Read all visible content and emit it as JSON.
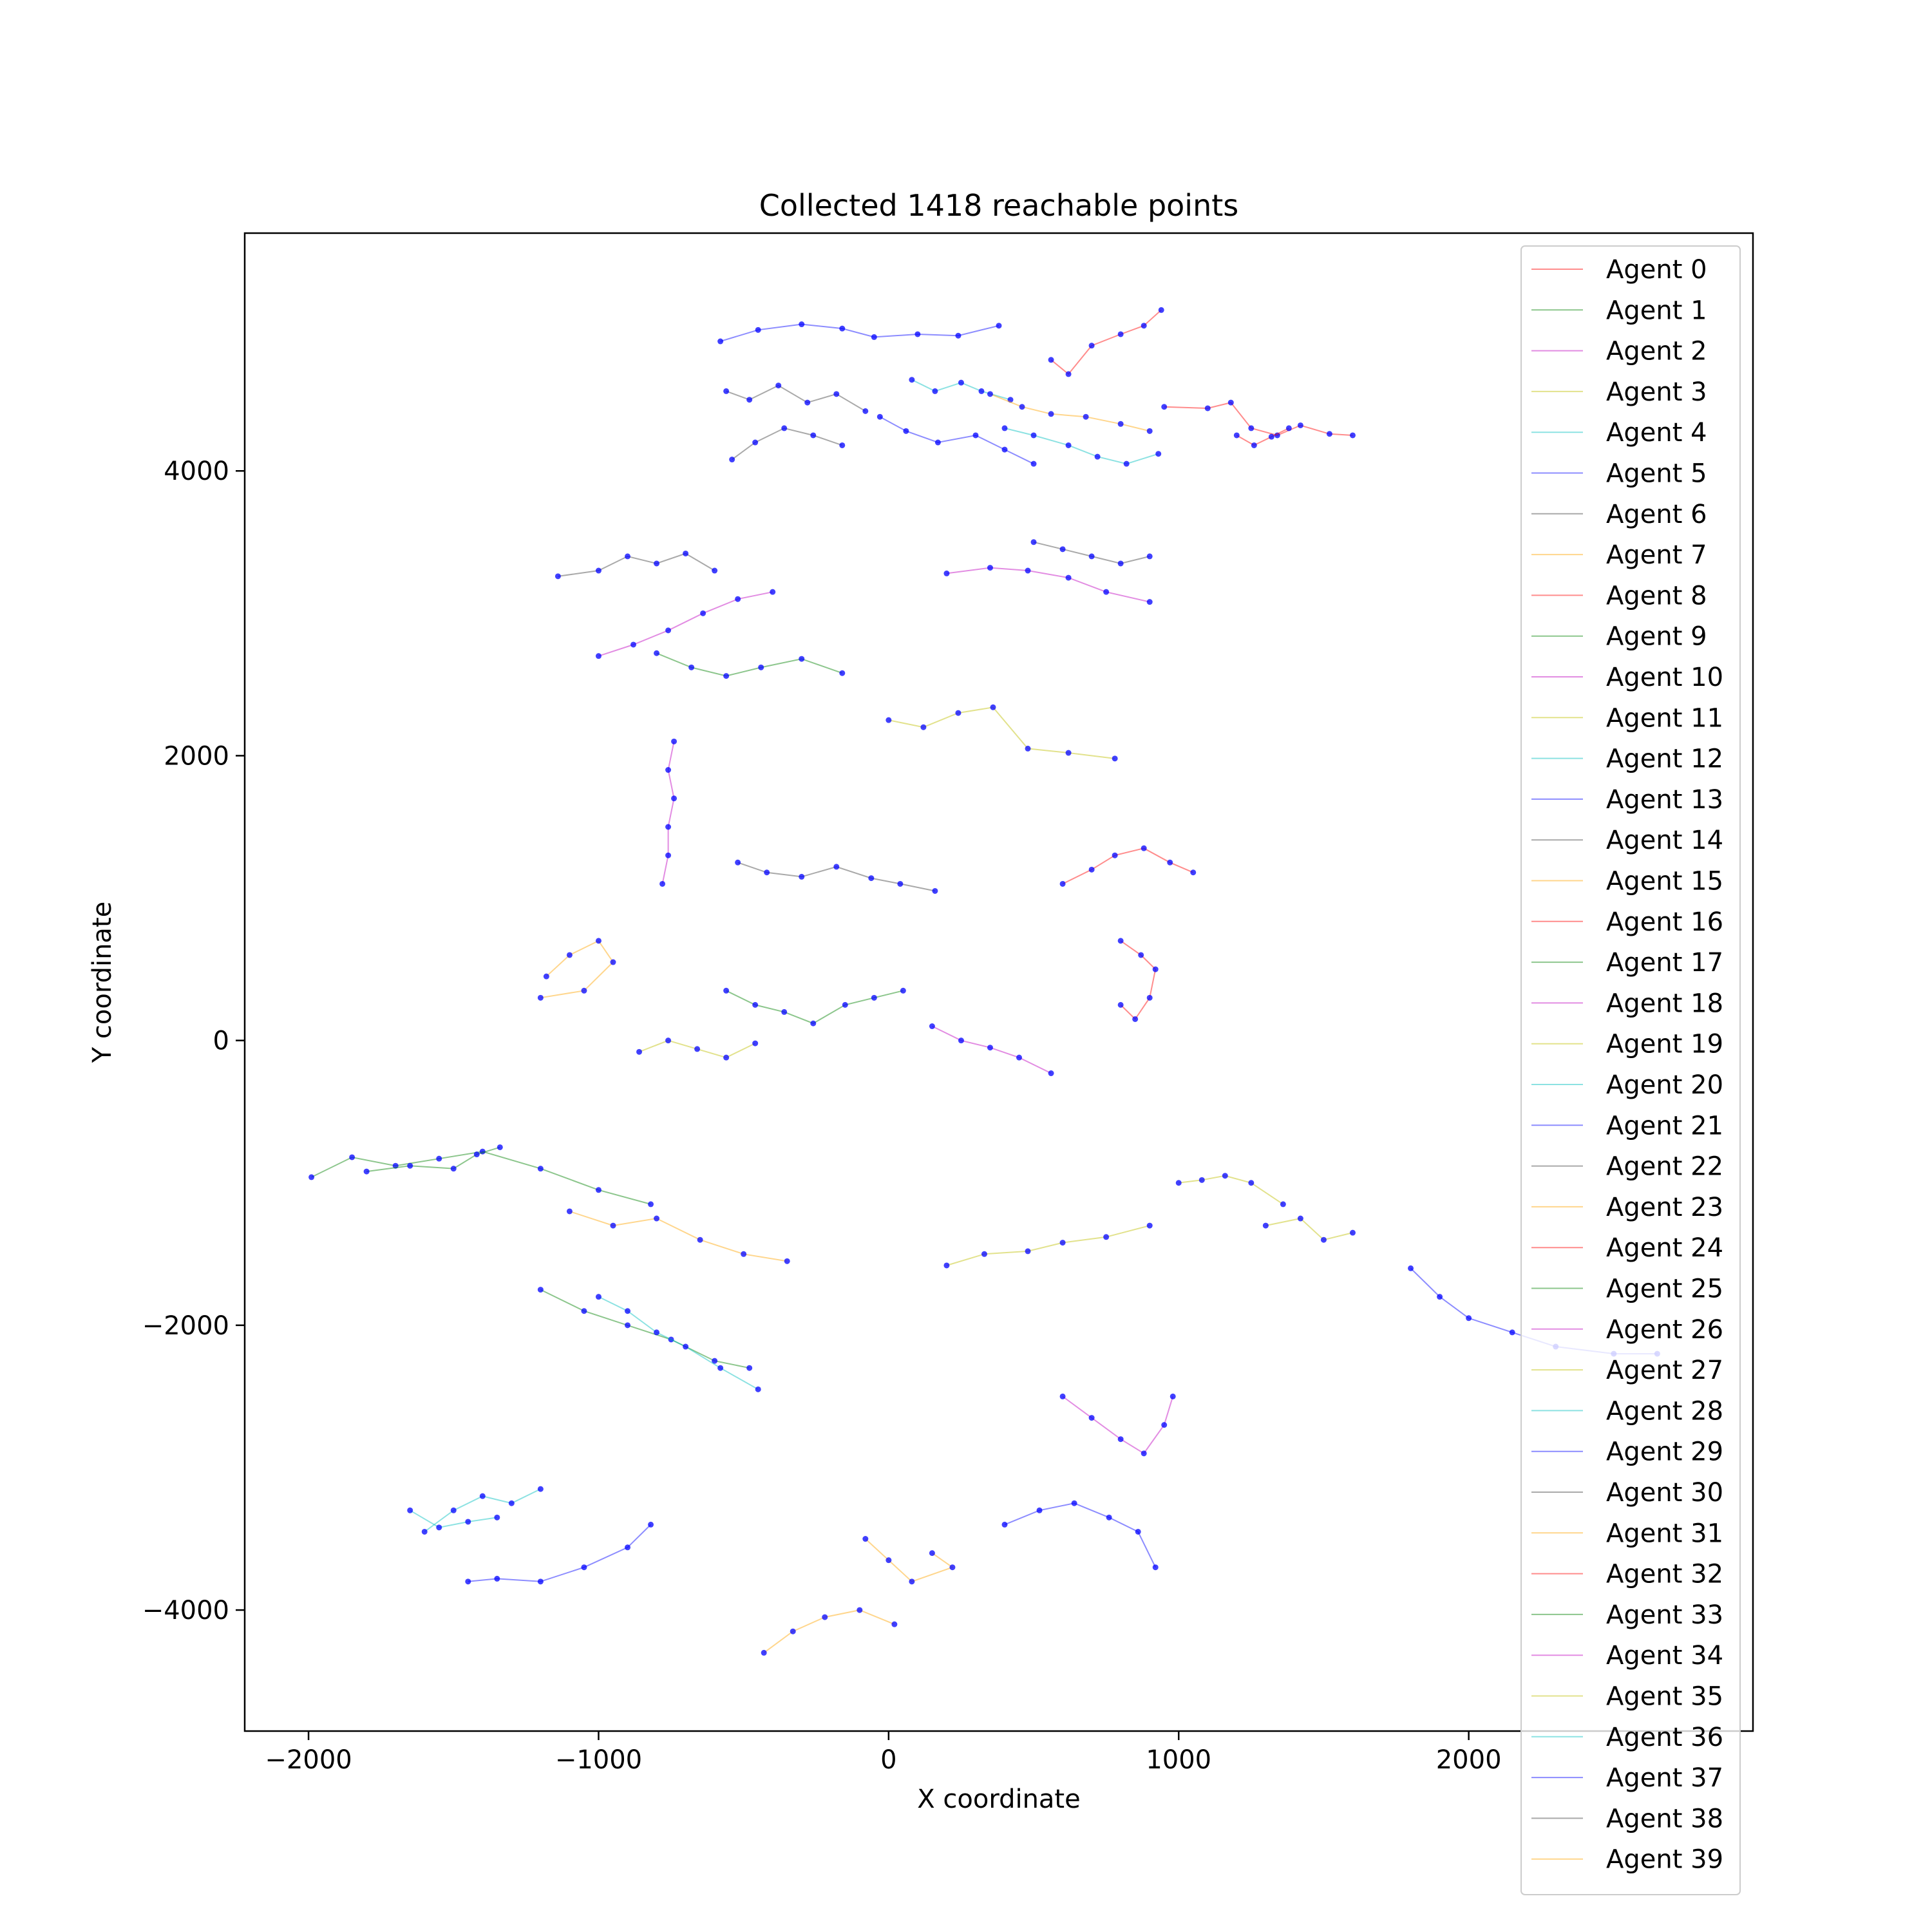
{
  "chart_data": {
    "type": "line",
    "title": "Collected 1418 reachable points",
    "xlabel": "X coordinate",
    "ylabel": "Y coordinate",
    "xlim": [
      -2220,
      2980
    ],
    "ylim": [
      -4850,
      5670
    ],
    "xticks": [
      -2000,
      -1000,
      0,
      1000,
      2000
    ],
    "xtick_labels": [
      "−2000",
      "−1000",
      "0",
      "1000",
      "2000"
    ],
    "yticks": [
      -4000,
      -2000,
      0,
      2000,
      4000
    ],
    "ytick_labels": [
      "−4000",
      "−2000",
      "0",
      "2000",
      "4000"
    ],
    "grid": false,
    "legend_position": "right",
    "point_color": "#0000ff",
    "series": [
      {
        "name": "Agent 0",
        "color": "#ff0000",
        "points": [
          [
            950,
            4450
          ],
          [
            1100,
            4440
          ],
          [
            1180,
            4480
          ],
          [
            1250,
            4300
          ],
          [
            1340,
            4250
          ],
          [
            1420,
            4320
          ],
          [
            1520,
            4260
          ],
          [
            1600,
            4250
          ]
        ]
      },
      {
        "name": "Agent 1",
        "color": "#008000",
        "points": [
          [
            -1990,
            -960
          ],
          [
            -1850,
            -820
          ],
          [
            -1700,
            -880
          ],
          [
            -1550,
            -830
          ],
          [
            -1400,
            -780
          ],
          [
            -1200,
            -900
          ],
          [
            -1000,
            -1050
          ],
          [
            -820,
            -1150
          ]
        ]
      },
      {
        "name": "Agent 2",
        "color": "#bf00bf",
        "points": [
          [
            200,
            3280
          ],
          [
            350,
            3320
          ],
          [
            480,
            3300
          ],
          [
            620,
            3250
          ],
          [
            750,
            3150
          ],
          [
            900,
            3080
          ]
        ]
      },
      {
        "name": "Agent 3",
        "color": "#bfbf00",
        "points": [
          [
            200,
            -1580
          ],
          [
            330,
            -1500
          ],
          [
            480,
            -1480
          ],
          [
            600,
            -1420
          ],
          [
            750,
            -1380
          ],
          [
            900,
            -1300
          ]
        ]
      },
      {
        "name": "Agent 4",
        "color": "#00bfbf",
        "points": [
          [
            80,
            4640
          ],
          [
            160,
            4560
          ],
          [
            250,
            4620
          ],
          [
            320,
            4560
          ],
          [
            420,
            4500
          ]
        ]
      },
      {
        "name": "Agent 5",
        "color": "#0000ff",
        "points": [
          [
            -580,
            4910
          ],
          [
            -450,
            4990
          ],
          [
            -300,
            5030
          ],
          [
            -160,
            5000
          ],
          [
            -50,
            4940
          ],
          [
            100,
            4960
          ],
          [
            240,
            4950
          ],
          [
            380,
            5020
          ]
        ]
      },
      {
        "name": "Agent 6",
        "color": "#404040",
        "points": [
          [
            -560,
            4560
          ],
          [
            -480,
            4500
          ],
          [
            -380,
            4600
          ],
          [
            -280,
            4480
          ],
          [
            -180,
            4540
          ],
          [
            -80,
            4420
          ]
        ]
      },
      {
        "name": "Agent 7",
        "color": "#ffa500",
        "points": [
          [
            350,
            4540
          ],
          [
            460,
            4450
          ],
          [
            560,
            4400
          ],
          [
            680,
            4380
          ],
          [
            800,
            4330
          ],
          [
            900,
            4280
          ]
        ]
      },
      {
        "name": "Agent 8",
        "color": "#ff0000",
        "points": [
          [
            560,
            4780
          ],
          [
            620,
            4680
          ],
          [
            700,
            4880
          ],
          [
            800,
            4960
          ],
          [
            880,
            5020
          ],
          [
            940,
            5130
          ]
        ]
      },
      {
        "name": "Agent 9",
        "color": "#008000",
        "points": [
          [
            -800,
            2720
          ],
          [
            -680,
            2620
          ],
          [
            -560,
            2560
          ],
          [
            -440,
            2620
          ],
          [
            -300,
            2680
          ],
          [
            -160,
            2580
          ]
        ]
      },
      {
        "name": "Agent 10",
        "color": "#bf00bf",
        "points": [
          [
            -1000,
            2700
          ],
          [
            -880,
            2780
          ],
          [
            -760,
            2880
          ],
          [
            -640,
            3000
          ],
          [
            -520,
            3100
          ],
          [
            -400,
            3150
          ]
        ]
      },
      {
        "name": "Agent 11",
        "color": "#bfbf00",
        "points": [
          [
            0,
            2250
          ],
          [
            120,
            2200
          ],
          [
            240,
            2300
          ],
          [
            360,
            2340
          ],
          [
            480,
            2050
          ],
          [
            620,
            2020
          ],
          [
            780,
            1980
          ]
        ]
      },
      {
        "name": "Agent 12",
        "color": "#00bfbf",
        "points": [
          [
            400,
            4300
          ],
          [
            500,
            4250
          ],
          [
            620,
            4180
          ],
          [
            720,
            4100
          ],
          [
            820,
            4050
          ],
          [
            930,
            4120
          ]
        ]
      },
      {
        "name": "Agent 13",
        "color": "#0000ff",
        "points": [
          [
            -30,
            4380
          ],
          [
            60,
            4280
          ],
          [
            170,
            4200
          ],
          [
            300,
            4250
          ],
          [
            400,
            4150
          ],
          [
            500,
            4050
          ]
        ]
      },
      {
        "name": "Agent 14",
        "color": "#404040",
        "points": [
          [
            -520,
            1250
          ],
          [
            -420,
            1180
          ],
          [
            -300,
            1150
          ],
          [
            -180,
            1220
          ],
          [
            -60,
            1140
          ],
          [
            40,
            1100
          ],
          [
            160,
            1050
          ]
        ]
      },
      {
        "name": "Agent 15",
        "color": "#ffa500",
        "points": [
          [
            -1180,
            450
          ],
          [
            -1100,
            600
          ],
          [
            -1000,
            700
          ],
          [
            -950,
            550
          ],
          [
            -1050,
            350
          ],
          [
            -1200,
            300
          ]
        ]
      },
      {
        "name": "Agent 16",
        "color": "#ff0000",
        "points": [
          [
            600,
            1100
          ],
          [
            700,
            1200
          ],
          [
            780,
            1300
          ],
          [
            880,
            1350
          ],
          [
            970,
            1250
          ],
          [
            1050,
            1180
          ]
        ]
      },
      {
        "name": "Agent 17",
        "color": "#008000",
        "points": [
          [
            -560,
            350
          ],
          [
            -460,
            250
          ],
          [
            -360,
            200
          ],
          [
            -260,
            120
          ],
          [
            -150,
            250
          ],
          [
            -50,
            300
          ],
          [
            50,
            350
          ]
        ]
      },
      {
        "name": "Agent 18",
        "color": "#bf00bf",
        "points": [
          [
            150,
            100
          ],
          [
            250,
            0
          ],
          [
            350,
            -50
          ],
          [
            450,
            -120
          ],
          [
            560,
            -230
          ]
        ]
      },
      {
        "name": "Agent 19",
        "color": "#bfbf00",
        "points": [
          [
            -860,
            -80
          ],
          [
            -760,
            0
          ],
          [
            -660,
            -60
          ],
          [
            -560,
            -120
          ],
          [
            -460,
            -20
          ]
        ]
      },
      {
        "name": "Agent 20",
        "color": "#00bfbf",
        "points": [
          [
            -1600,
            -3450
          ],
          [
            -1500,
            -3300
          ],
          [
            -1400,
            -3200
          ],
          [
            -1300,
            -3250
          ],
          [
            -1200,
            -3150
          ]
        ]
      },
      {
        "name": "Agent 21",
        "color": "#0000ff",
        "points": [
          [
            -1450,
            -3800
          ],
          [
            -1350,
            -3780
          ],
          [
            -1200,
            -3800
          ],
          [
            -1050,
            -3700
          ],
          [
            -900,
            -3560
          ],
          [
            -820,
            -3400
          ]
        ]
      },
      {
        "name": "Agent 22",
        "color": "#404040",
        "points": [
          [
            -1140,
            3260
          ],
          [
            -1000,
            3300
          ],
          [
            -900,
            3400
          ],
          [
            -800,
            3350
          ],
          [
            -700,
            3420
          ],
          [
            -600,
            3300
          ]
        ]
      },
      {
        "name": "Agent 23",
        "color": "#ffa500",
        "points": [
          [
            -1100,
            -1200
          ],
          [
            -950,
            -1300
          ],
          [
            -800,
            -1250
          ],
          [
            -650,
            -1400
          ],
          [
            -500,
            -1500
          ],
          [
            -350,
            -1550
          ]
        ]
      },
      {
        "name": "Agent 24",
        "color": "#ff0000",
        "points": [
          [
            800,
            700
          ],
          [
            870,
            600
          ],
          [
            920,
            500
          ],
          [
            900,
            300
          ],
          [
            850,
            150
          ],
          [
            800,
            250
          ]
        ]
      },
      {
        "name": "Agent 25",
        "color": "#008000",
        "points": [
          [
            -1200,
            -1750
          ],
          [
            -1050,
            -1900
          ],
          [
            -900,
            -2000
          ],
          [
            -750,
            -2100
          ],
          [
            -600,
            -2250
          ],
          [
            -480,
            -2300
          ]
        ]
      },
      {
        "name": "Agent 26",
        "color": "#bf00bf",
        "points": [
          [
            600,
            -2500
          ],
          [
            700,
            -2650
          ],
          [
            800,
            -2800
          ],
          [
            880,
            -2900
          ],
          [
            950,
            -2700
          ],
          [
            980,
            -2500
          ]
        ]
      },
      {
        "name": "Agent 27",
        "color": "#bfbf00",
        "points": [
          [
            1300,
            -1300
          ],
          [
            1420,
            -1250
          ],
          [
            1500,
            -1400
          ],
          [
            1600,
            -1350
          ]
        ]
      },
      {
        "name": "Agent 28",
        "color": "#00bfbf",
        "points": [
          [
            -1000,
            -1800
          ],
          [
            -900,
            -1900
          ],
          [
            -800,
            -2050
          ],
          [
            -700,
            -2150
          ],
          [
            -580,
            -2300
          ],
          [
            -450,
            -2450
          ]
        ]
      },
      {
        "name": "Agent 29",
        "color": "#0000ff",
        "points": [
          [
            400,
            -3400
          ],
          [
            520,
            -3300
          ],
          [
            640,
            -3250
          ],
          [
            760,
            -3350
          ],
          [
            860,
            -3450
          ],
          [
            920,
            -3700
          ]
        ]
      },
      {
        "name": "Agent 30",
        "color": "#404040",
        "points": [
          [
            -540,
            4080
          ],
          [
            -460,
            4200
          ],
          [
            -360,
            4300
          ],
          [
            -260,
            4250
          ],
          [
            -160,
            4180
          ]
        ]
      },
      {
        "name": "Agent 31",
        "color": "#ffa500",
        "points": [
          [
            -430,
            -4300
          ],
          [
            -330,
            -4150
          ],
          [
            -220,
            -4050
          ],
          [
            -100,
            -4000
          ],
          [
            20,
            -4100
          ]
        ]
      },
      {
        "name": "Agent 32",
        "color": "#ff0000",
        "points": [
          [
            1200,
            4250
          ],
          [
            1260,
            4180
          ],
          [
            1320,
            4240
          ],
          [
            1380,
            4300
          ]
        ]
      },
      {
        "name": "Agent 33",
        "color": "#008000",
        "points": [
          [
            -1800,
            -920
          ],
          [
            -1650,
            -880
          ],
          [
            -1500,
            -900
          ],
          [
            -1420,
            -800
          ],
          [
            -1340,
            -750
          ]
        ]
      },
      {
        "name": "Agent 34",
        "color": "#bf00bf",
        "points": [
          [
            -780,
            1100
          ],
          [
            -760,
            1300
          ],
          [
            -760,
            1500
          ],
          [
            -740,
            1700
          ],
          [
            -760,
            1900
          ],
          [
            -740,
            2100
          ]
        ]
      },
      {
        "name": "Agent 35",
        "color": "#bfbf00",
        "points": [
          [
            1000,
            -1000
          ],
          [
            1080,
            -980
          ],
          [
            1160,
            -950
          ],
          [
            1250,
            -1000
          ],
          [
            1360,
            -1150
          ]
        ]
      },
      {
        "name": "Agent 36",
        "color": "#00bfbf",
        "points": [
          [
            -1650,
            -3300
          ],
          [
            -1550,
            -3420
          ],
          [
            -1450,
            -3380
          ],
          [
            -1350,
            -3350
          ]
        ]
      },
      {
        "name": "Agent 37",
        "color": "#0000ff",
        "points": [
          [
            1800,
            -1600
          ],
          [
            1900,
            -1800
          ],
          [
            2000,
            -1950
          ],
          [
            2150,
            -2050
          ],
          [
            2300,
            -2150
          ],
          [
            2500,
            -2200
          ],
          [
            2650,
            -2200
          ]
        ]
      },
      {
        "name": "Agent 38",
        "color": "#404040",
        "points": [
          [
            500,
            3500
          ],
          [
            600,
            3450
          ],
          [
            700,
            3400
          ],
          [
            800,
            3350
          ],
          [
            900,
            3400
          ]
        ]
      },
      {
        "name": "Agent 39",
        "color": "#ffa500",
        "points": [
          [
            150,
            -3600
          ],
          [
            220,
            -3700
          ],
          [
            80,
            -3800
          ],
          [
            0,
            -3650
          ],
          [
            -80,
            -3500
          ]
        ]
      }
    ]
  }
}
